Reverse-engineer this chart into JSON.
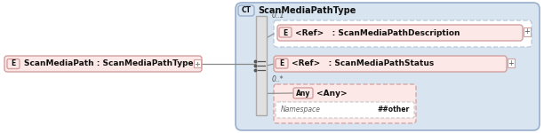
{
  "bg_color": "#ffffff",
  "main_bg": "#d8e4f0",
  "element_fill": "#fce8e6",
  "element_border": "#d4a0a0",
  "ct_box_border": "#9aafcc",
  "seq_fill": "#e0e0e0",
  "seq_border": "#aaaaaa",
  "connector_color": "#888888",
  "text_color": "#111111",
  "label_E": "E",
  "label_CT": "CT",
  "label_Any": "Any",
  "main_element_text": "ScanMediaPath : ScanMediaPathType",
  "ct_title": "ScanMediaPathType",
  "elem1_ref": "<Ref>",
  "elem1_name": ": ScanMediaPathDescription",
  "elem2_ref": "<Ref>",
  "elem2_name": ": ScanMediaPathStatus",
  "elem3_text": "<Any>",
  "namespace_label": "Namespace",
  "namespace_value": "##other",
  "multiplicity1": "0..1",
  "multiplicity2": "0..*"
}
